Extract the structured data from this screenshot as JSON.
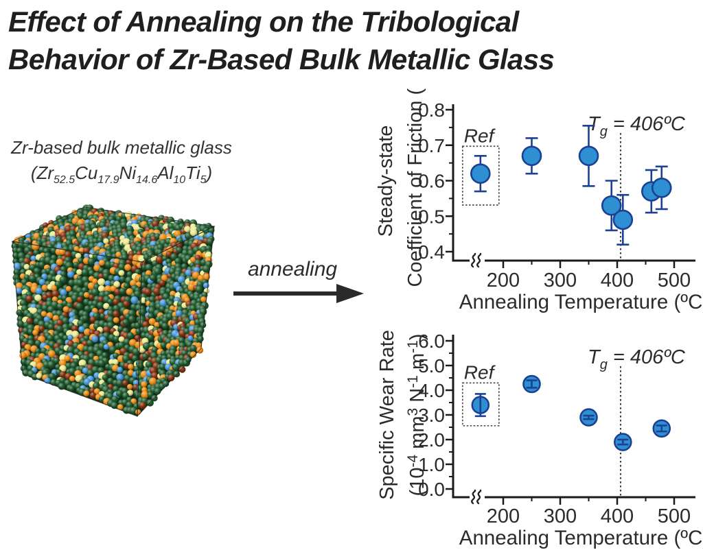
{
  "figure": {
    "title_line1": "Effect of Annealing on the Tribological",
    "title_line2": "Behavior of Zr-Based Bulk Metallic Glass"
  },
  "material": {
    "name": "Zr-based bulk metallic glass",
    "formula": [
      {
        "t": "(Zr"
      },
      {
        "sub": "52.5"
      },
      {
        "t": "Cu"
      },
      {
        "sub": "17.9"
      },
      {
        "t": "Ni"
      },
      {
        "sub": "14.6"
      },
      {
        "t": "Al"
      },
      {
        "sub": "10"
      },
      {
        "t": "Ti"
      },
      {
        "sub": "5"
      },
      {
        "t": ")"
      }
    ],
    "atom_palette": [
      {
        "name": "Zr",
        "color": "#1f5a2e",
        "weight": 0.6
      },
      {
        "name": "Cu",
        "color": "#ef8c15",
        "weight": 0.14
      },
      {
        "name": "Ni",
        "color": "#84300f",
        "weight": 0.12
      },
      {
        "name": "Al",
        "color": "#4595da",
        "weight": 0.08
      },
      {
        "name": "Ti",
        "color": "#ece98f",
        "weight": 0.06
      }
    ]
  },
  "process": {
    "label": "annealing"
  },
  "chart_style": {
    "marker_fill": "#2e8fd2",
    "marker_edge": "#1c4193",
    "error_color": "#1c4193",
    "text_color": "#2b2b2b",
    "axis_color": "#1a1a1a"
  },
  "chart_data": [
    {
      "type": "scatter",
      "title": "",
      "xlabel": "Annealing Temperature (ºC)",
      "ylabel_lines": [
        "Steady-state",
        "Coefficient of Friction (-)"
      ],
      "xlim": [
        130,
        530
      ],
      "ylim": [
        0.4,
        0.8
      ],
      "xticks": [
        "200",
        "300",
        "400",
        "500"
      ],
      "xtick_values": [
        200,
        300,
        400,
        500
      ],
      "yticks": [
        {
          "v": 0.4,
          "label": "0.4"
        },
        {
          "v": 0.5,
          "label": "0.5"
        },
        {
          "v": 0.6,
          "label": "0.6"
        },
        {
          "v": 0.7,
          "label": "0.7"
        },
        {
          "v": 0.8,
          "label": "0.8"
        }
      ],
      "x_axis_break": true,
      "grid": false,
      "ref_label": "Ref",
      "tg": {
        "pre": "T",
        "sub": "g",
        "post": " = 406ºC",
        "value": 406
      },
      "points": [
        {
          "x": 160,
          "y": 0.62,
          "err": 0.05,
          "ref": true
        },
        {
          "x": 250,
          "y": 0.67,
          "err": 0.05
        },
        {
          "x": 350,
          "y": 0.67,
          "err": 0.085
        },
        {
          "x": 390,
          "y": 0.53,
          "err": 0.07
        },
        {
          "x": 410,
          "y": 0.49,
          "err": 0.07
        },
        {
          "x": 460,
          "y": 0.57,
          "err": 0.06
        },
        {
          "x": 478,
          "y": 0.58,
          "err": 0.06
        }
      ]
    },
    {
      "type": "scatter",
      "title": "",
      "xlabel": "Annealing Temperature (ºC)",
      "ylabel_lines": [
        "Specific Wear Rate",
        [
          {
            "t": "(10"
          },
          {
            "sup": "-4"
          },
          {
            "t": " mm"
          },
          {
            "sup": "3"
          },
          {
            "t": " N"
          },
          {
            "sup": "-1"
          },
          {
            "t": " m"
          },
          {
            "sup": "-1"
          },
          {
            "t": ")"
          }
        ]
      ],
      "xlim": [
        130,
        530
      ],
      "ylim": [
        0.0,
        6.0
      ],
      "xticks": [
        "200",
        "300",
        "400",
        "500"
      ],
      "xtick_values": [
        200,
        300,
        400,
        500
      ],
      "yticks": [
        {
          "v": 0,
          "label": "0.0"
        },
        {
          "v": 1,
          "label": "1.0"
        },
        {
          "v": 2,
          "label": "2.0"
        },
        {
          "v": 3,
          "label": "3.0"
        },
        {
          "v": 4,
          "label": "4.0"
        },
        {
          "v": 5,
          "label": "5.0"
        },
        {
          "v": 6,
          "label": "6.0"
        }
      ],
      "x_axis_break": true,
      "grid": false,
      "ref_label": "Ref",
      "tg": {
        "pre": "T",
        "sub": "g",
        "post": " = 406ºC",
        "value": 406
      },
      "points": [
        {
          "x": 160,
          "y": 3.4,
          "err": 0.45,
          "ref": true
        },
        {
          "x": 250,
          "y": 4.25,
          "err": 0.15
        },
        {
          "x": 350,
          "y": 2.9,
          "err": 0.07
        },
        {
          "x": 410,
          "y": 1.9,
          "err": 0.1
        },
        {
          "x": 478,
          "y": 2.45,
          "err": 0.12
        }
      ]
    }
  ]
}
